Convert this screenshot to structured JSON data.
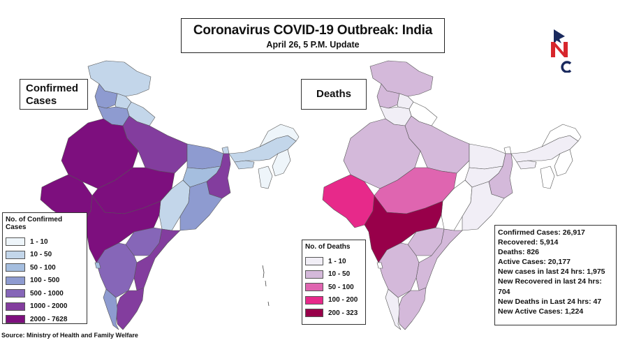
{
  "header": {
    "title": "Coronavirus COVID-19 Outbreak: India",
    "subtitle": "April 26, 5 P.M. Update"
  },
  "logo": {
    "text": "NC",
    "colors": {
      "navy": "#1a2a5e",
      "red": "#d7262c"
    }
  },
  "maps": {
    "confirmed": {
      "label": "Confirmed Cases",
      "legend_title": "No. of Confirmed Cases",
      "legend": [
        {
          "label": "1 - 10",
          "color": "#eef5fa"
        },
        {
          "label": "10 - 50",
          "color": "#c3d6ea"
        },
        {
          "label": "50 - 100",
          "color": "#a5bedf"
        },
        {
          "label": "100 - 500",
          "color": "#8e9bd0"
        },
        {
          "label": "500 - 1000",
          "color": "#8666b8"
        },
        {
          "label": "1000 - 2000",
          "color": "#833d9e"
        },
        {
          "label": "2000 - 7628",
          "color": "#7d0f7e"
        }
      ]
    },
    "deaths": {
      "label": "Deaths",
      "legend_title": "No. of Deaths",
      "legend": [
        {
          "label": "1 - 10",
          "color": "#f1eef6"
        },
        {
          "label": "10 - 50",
          "color": "#d4b9da"
        },
        {
          "label": "50 - 100",
          "color": "#df65b0"
        },
        {
          "label": "100 - 200",
          "color": "#e7298a"
        },
        {
          "label": "200 - 323",
          "color": "#98004a"
        }
      ]
    }
  },
  "stats": [
    "Confirmed Cases: 26,917",
    "Recovered: 5,914",
    "Deaths: 826",
    "Active Cases:  20,177",
    "New cases in last 24 hrs: 1,975",
    "New Recovered in last 24 hrs:",
    "704",
    "New Deaths in Last 24 hrs: 47",
    "New Active Cases: 1,224"
  ],
  "source": "Source: Ministry of Health and Family Welfare"
}
